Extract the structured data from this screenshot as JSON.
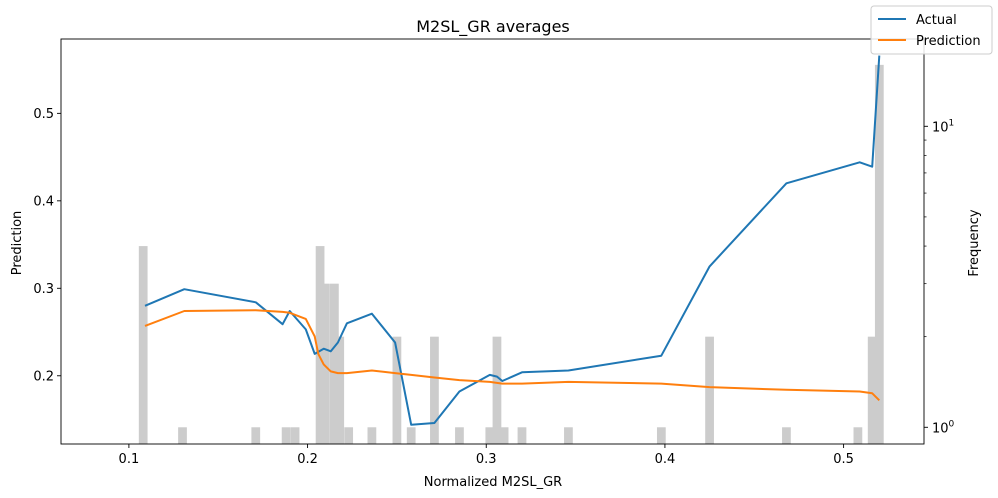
{
  "chart_data": {
    "type": "line",
    "title": "M2SL_GR averages",
    "xlabel": "Normalized M2SL_GR",
    "ylabel": "Prediction",
    "y2label": "Frequency",
    "xlim": [
      0.062,
      0.545
    ],
    "ylim": [
      0.122,
      0.585
    ],
    "y2lim": [
      0.88,
      19.5
    ],
    "y2scale": "log",
    "xticks": [
      {
        "value": 0.1,
        "label": "0.1"
      },
      {
        "value": 0.2,
        "label": "0.2"
      },
      {
        "value": 0.3,
        "label": "0.3"
      },
      {
        "value": 0.4,
        "label": "0.4"
      },
      {
        "value": 0.5,
        "label": "0.5"
      }
    ],
    "yticks": [
      {
        "value": 0.2,
        "label": "0.2"
      },
      {
        "value": 0.3,
        "label": "0.3"
      },
      {
        "value": 0.4,
        "label": "0.4"
      },
      {
        "value": 0.5,
        "label": "0.5"
      }
    ],
    "y2ticks": [
      {
        "value": 1,
        "base": "10",
        "exp": "0"
      },
      {
        "value": 10,
        "base": "10",
        "exp": "1"
      }
    ],
    "y2minor": [
      2,
      3,
      4,
      5,
      6,
      7,
      8,
      9
    ],
    "legend": "top-right",
    "series": [
      {
        "name": "Actual",
        "color": "#1f77b4",
        "x": [
          0.109,
          0.131,
          0.171,
          0.186,
          0.19,
          0.199,
          0.204,
          0.209,
          0.213,
          0.217,
          0.222,
          0.236,
          0.249,
          0.258,
          0.271,
          0.285,
          0.302,
          0.306,
          0.309,
          0.32,
          0.346,
          0.398,
          0.425,
          0.468,
          0.509,
          0.516,
          0.52
        ],
        "y": [
          0.28,
          0.299,
          0.284,
          0.259,
          0.274,
          0.253,
          0.225,
          0.231,
          0.228,
          0.238,
          0.26,
          0.271,
          0.238,
          0.144,
          0.146,
          0.182,
          0.201,
          0.199,
          0.194,
          0.204,
          0.206,
          0.223,
          0.325,
          0.42,
          0.444,
          0.439,
          0.566
        ]
      },
      {
        "name": "Prediction",
        "color": "#ff7f0e",
        "x": [
          0.109,
          0.131,
          0.171,
          0.186,
          0.19,
          0.199,
          0.204,
          0.206,
          0.209,
          0.213,
          0.217,
          0.222,
          0.236,
          0.249,
          0.258,
          0.271,
          0.285,
          0.302,
          0.309,
          0.32,
          0.346,
          0.398,
          0.425,
          0.468,
          0.509,
          0.516,
          0.52
        ],
        "y": [
          0.257,
          0.274,
          0.275,
          0.273,
          0.272,
          0.265,
          0.245,
          0.225,
          0.213,
          0.205,
          0.203,
          0.203,
          0.206,
          0.203,
          0.201,
          0.198,
          0.195,
          0.193,
          0.191,
          0.191,
          0.193,
          0.191,
          0.187,
          0.184,
          0.182,
          0.18,
          0.172
        ]
      }
    ],
    "histogram": {
      "name": "Frequency",
      "color": "#cccccc",
      "bin_width": 0.0049,
      "bins": [
        {
          "x": 0.108,
          "count": 4
        },
        {
          "x": 0.13,
          "count": 1
        },
        {
          "x": 0.171,
          "count": 1
        },
        {
          "x": 0.188,
          "count": 1
        },
        {
          "x": 0.193,
          "count": 1
        },
        {
          "x": 0.207,
          "count": 4
        },
        {
          "x": 0.21,
          "count": 3
        },
        {
          "x": 0.215,
          "count": 3
        },
        {
          "x": 0.218,
          "count": 2
        },
        {
          "x": 0.223,
          "count": 1
        },
        {
          "x": 0.236,
          "count": 1
        },
        {
          "x": 0.25,
          "count": 2
        },
        {
          "x": 0.258,
          "count": 1
        },
        {
          "x": 0.271,
          "count": 2
        },
        {
          "x": 0.285,
          "count": 1
        },
        {
          "x": 0.302,
          "count": 1
        },
        {
          "x": 0.306,
          "count": 2
        },
        {
          "x": 0.31,
          "count": 1
        },
        {
          "x": 0.32,
          "count": 1
        },
        {
          "x": 0.346,
          "count": 1
        },
        {
          "x": 0.398,
          "count": 1
        },
        {
          "x": 0.425,
          "count": 2
        },
        {
          "x": 0.468,
          "count": 1
        },
        {
          "x": 0.508,
          "count": 1
        },
        {
          "x": 0.516,
          "count": 2
        },
        {
          "x": 0.52,
          "count": 16
        }
      ]
    }
  }
}
